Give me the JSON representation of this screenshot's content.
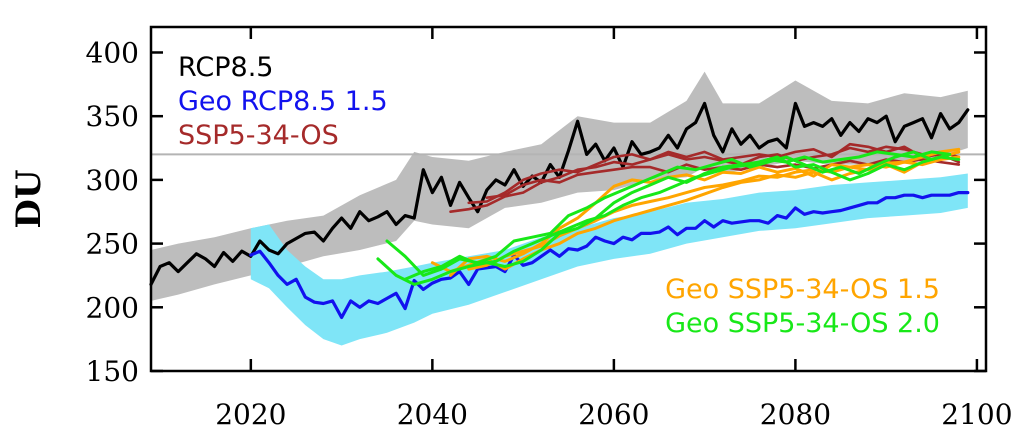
{
  "chart_data": {
    "type": "line",
    "title": "",
    "ylabel": "DU",
    "xlabel": "",
    "xlim": [
      2009,
      2101
    ],
    "ylim": [
      150,
      420
    ],
    "xticks": [
      2020,
      2040,
      2060,
      2080,
      2100
    ],
    "xtick_labels": [
      "2020",
      "2040",
      "2060",
      "2080",
      "2100"
    ],
    "yticks": [
      150,
      200,
      250,
      300,
      350,
      400
    ],
    "ytick_labels": [
      "150",
      "200",
      "250",
      "300",
      "350",
      "400"
    ],
    "reference_line": {
      "y": 320,
      "color": "#b4b4b4"
    },
    "grid": false,
    "colors": {
      "rcp85": "#000000",
      "rcp85_band": "#bdbdbd",
      "geo_rcp85": "#1212ee",
      "geo_rcp85_band": "#7fe5f7",
      "ssp534": "#a52a2a",
      "geo_ssp534_15": "#ffa500",
      "geo_ssp534_20": "#18e818"
    },
    "legend": [
      {
        "label": "RCP8.5",
        "series": "rcp85",
        "color": "#000000",
        "placement": "top-left"
      },
      {
        "label": "Geo RCP8.5 1.5",
        "series": "geo_rcp85",
        "color": "#1212ee",
        "placement": "top-left"
      },
      {
        "label": "SSP5-34-OS",
        "series": "ssp534",
        "color": "#a52a2a",
        "placement": "top-left"
      },
      {
        "label": "Geo SSP5-34-OS 1.5",
        "series": "geo_ssp534_15",
        "color": "#ffa500",
        "placement": "bottom-right"
      },
      {
        "label": "Geo SSP5-34-OS 2.0",
        "series": "geo_ssp534_20",
        "color": "#18e818",
        "placement": "bottom-right"
      }
    ],
    "bands": [
      {
        "series": "rcp85",
        "color": "#bdbdbd",
        "x": [
          2009,
          2012,
          2016,
          2020,
          2024,
          2028,
          2032,
          2036,
          2038,
          2040,
          2044,
          2048,
          2052,
          2056,
          2060,
          2064,
          2068,
          2070,
          2072,
          2076,
          2080,
          2084,
          2088,
          2092,
          2096,
          2099
        ],
        "upper": [
          245,
          250,
          255,
          262,
          268,
          272,
          288,
          300,
          322,
          318,
          315,
          322,
          328,
          350,
          345,
          345,
          362,
          385,
          360,
          360,
          378,
          362,
          360,
          368,
          365,
          370
        ],
        "lower": [
          205,
          210,
          218,
          225,
          232,
          240,
          245,
          252,
          268,
          265,
          262,
          278,
          282,
          290,
          292,
          300,
          302,
          310,
          305,
          310,
          315,
          312,
          312,
          315,
          318,
          325
        ]
      },
      {
        "series": "geo_rcp85",
        "color": "#7fe5f7",
        "x": [
          2020,
          2022,
          2024,
          2026,
          2028,
          2030,
          2032,
          2035,
          2038,
          2040,
          2044,
          2048,
          2052,
          2056,
          2060,
          2064,
          2068,
          2072,
          2076,
          2080,
          2084,
          2088,
          2092,
          2096,
          2099
        ],
        "upper": [
          262,
          265,
          245,
          232,
          222,
          222,
          225,
          228,
          232,
          235,
          240,
          245,
          255,
          262,
          270,
          275,
          282,
          285,
          290,
          292,
          296,
          298,
          300,
          302,
          305
        ],
        "lower": [
          222,
          215,
          200,
          186,
          175,
          170,
          175,
          180,
          188,
          195,
          202,
          212,
          222,
          232,
          238,
          242,
          250,
          255,
          260,
          262,
          266,
          270,
          272,
          274,
          278
        ]
      }
    ],
    "series": [
      {
        "name": "RCP8.5",
        "key": "rcp85",
        "color": "#000000",
        "x": [
          2009,
          2010,
          2011,
          2012,
          2013,
          2014,
          2015,
          2016,
          2017,
          2018,
          2019,
          2020,
          2021,
          2022,
          2023,
          2024,
          2025,
          2026,
          2027,
          2028,
          2029,
          2030,
          2031,
          2032,
          2033,
          2034,
          2035,
          2036,
          2037,
          2038,
          2039,
          2040,
          2041,
          2042,
          2043,
          2044,
          2045,
          2046,
          2047,
          2048,
          2049,
          2050,
          2051,
          2052,
          2053,
          2054,
          2055,
          2056,
          2057,
          2058,
          2059,
          2060,
          2061,
          2062,
          2063,
          2064,
          2065,
          2066,
          2067,
          2068,
          2069,
          2070,
          2071,
          2072,
          2073,
          2074,
          2075,
          2076,
          2077,
          2078,
          2079,
          2080,
          2081,
          2082,
          2083,
          2084,
          2085,
          2086,
          2087,
          2088,
          2089,
          2090,
          2091,
          2092,
          2093,
          2094,
          2095,
          2096,
          2097,
          2098,
          2099
        ],
        "values": [
          218,
          232,
          235,
          228,
          235,
          242,
          238,
          232,
          243,
          236,
          244,
          240,
          252,
          245,
          242,
          250,
          254,
          258,
          259,
          252,
          262,
          270,
          262,
          275,
          268,
          271,
          275,
          265,
          272,
          270,
          308,
          290,
          302,
          280,
          298,
          286,
          275,
          292,
          300,
          296,
          308,
          295,
          303,
          298,
          312,
          302,
          323,
          346,
          320,
          328,
          315,
          325,
          310,
          330,
          320,
          322,
          325,
          335,
          325,
          340,
          345,
          360,
          335,
          322,
          340,
          328,
          335,
          325,
          330,
          332,
          325,
          360,
          342,
          345,
          342,
          348,
          335,
          345,
          338,
          348,
          345,
          350,
          330,
          342,
          345,
          348,
          333,
          352,
          340,
          345,
          355
        ]
      },
      {
        "name": "Geo RCP8.5 1.5",
        "key": "geo_rcp85",
        "color": "#1212ee",
        "x": [
          2020,
          2021,
          2022,
          2023,
          2024,
          2025,
          2026,
          2027,
          2028,
          2029,
          2030,
          2031,
          2032,
          2033,
          2034,
          2035,
          2036,
          2037,
          2038,
          2039,
          2040,
          2041,
          2042,
          2043,
          2044,
          2045,
          2046,
          2047,
          2048,
          2049,
          2050,
          2051,
          2052,
          2053,
          2054,
          2055,
          2056,
          2057,
          2058,
          2059,
          2060,
          2061,
          2062,
          2063,
          2064,
          2065,
          2066,
          2067,
          2068,
          2069,
          2070,
          2071,
          2072,
          2073,
          2074,
          2075,
          2076,
          2077,
          2078,
          2079,
          2080,
          2081,
          2082,
          2083,
          2084,
          2085,
          2086,
          2087,
          2088,
          2089,
          2090,
          2091,
          2092,
          2093,
          2094,
          2095,
          2096,
          2097,
          2098,
          2099
        ],
        "values": [
          241,
          244,
          235,
          225,
          218,
          222,
          208,
          204,
          203,
          205,
          192,
          205,
          200,
          205,
          203,
          207,
          211,
          199,
          221,
          214,
          219,
          222,
          223,
          228,
          218,
          230,
          231,
          232,
          228,
          241,
          233,
          235,
          240,
          245,
          240,
          246,
          245,
          248,
          255,
          252,
          250,
          255,
          253,
          258,
          258,
          259,
          263,
          257,
          262,
          262,
          268,
          263,
          268,
          266,
          267,
          268,
          268,
          266,
          272,
          270,
          278,
          273,
          275,
          274,
          275,
          276,
          278,
          280,
          282,
          282,
          286,
          286,
          288,
          288,
          286,
          288,
          288,
          288,
          290,
          290
        ]
      },
      {
        "name": "SSP5-34-OS",
        "key": "ssp534",
        "color": "#a52a2a",
        "x": [
          2042,
          2044,
          2046,
          2048,
          2050,
          2052,
          2054,
          2056,
          2058,
          2060,
          2062,
          2064,
          2066,
          2068,
          2070,
          2072,
          2074,
          2076,
          2078,
          2080,
          2082,
          2084,
          2086,
          2088,
          2090,
          2092,
          2094,
          2096,
          2098
        ],
        "values": [
          275,
          277,
          280,
          287,
          290,
          298,
          302,
          308,
          310,
          314,
          312,
          316,
          320,
          316,
          318,
          315,
          312,
          318,
          320,
          315,
          318,
          320,
          325,
          322,
          326,
          324,
          320,
          322,
          318
        ]
      },
      {
        "name": "SSP5-34-OS run 2",
        "key": "ssp534",
        "color": "#a52a2a",
        "x": [
          2044,
          2046,
          2048,
          2050,
          2052,
          2054,
          2056,
          2058,
          2060,
          2062,
          2064,
          2066,
          2068,
          2070,
          2072,
          2074,
          2076,
          2078,
          2080,
          2082,
          2084,
          2086,
          2088,
          2090,
          2092,
          2094,
          2096,
          2098
        ],
        "values": [
          282,
          283,
          290,
          300,
          305,
          308,
          306,
          312,
          318,
          320,
          316,
          322,
          318,
          322,
          316,
          318,
          320,
          318,
          322,
          324,
          318,
          328,
          326,
          322,
          326,
          318,
          320,
          314
        ]
      },
      {
        "name": "SSP5-34-OS run 3",
        "key": "ssp534",
        "color": "#a52a2a",
        "x": [
          2046,
          2048,
          2050,
          2052,
          2054,
          2056,
          2058,
          2060,
          2062,
          2064,
          2066,
          2068,
          2070,
          2072,
          2074,
          2076,
          2078,
          2080,
          2082,
          2084,
          2086,
          2088,
          2090,
          2092,
          2094,
          2096,
          2098
        ],
        "values": [
          286,
          288,
          296,
          300,
          298,
          304,
          306,
          308,
          310,
          310,
          306,
          312,
          308,
          310,
          308,
          312,
          310,
          312,
          309,
          312,
          315,
          312,
          316,
          314,
          316,
          314,
          312
        ]
      },
      {
        "name": "Geo SSP5-34-OS 1.5",
        "key": "geo_ssp534_15",
        "color": "#ffa500",
        "x": [
          2040,
          2042,
          2044,
          2046,
          2048,
          2050,
          2052,
          2054,
          2056,
          2058,
          2060,
          2062,
          2064,
          2066,
          2068,
          2070,
          2072,
          2074,
          2076,
          2078,
          2080,
          2082,
          2084,
          2086,
          2088,
          2090,
          2092,
          2094,
          2096,
          2098
        ],
        "values": [
          235,
          228,
          233,
          238,
          230,
          238,
          245,
          250,
          258,
          262,
          268,
          272,
          276,
          280,
          284,
          289,
          294,
          298,
          300,
          304,
          302,
          306,
          300,
          305,
          308,
          312,
          306,
          314,
          318,
          322
        ]
      },
      {
        "name": "Geo SSP5-34-OS 1.5 run 2",
        "key": "geo_ssp534_15",
        "color": "#ffa500",
        "x": [
          2042,
          2044,
          2046,
          2048,
          2050,
          2052,
          2054,
          2056,
          2058,
          2060,
          2062,
          2064,
          2066,
          2068,
          2070,
          2072,
          2074,
          2076,
          2078,
          2080,
          2082,
          2084,
          2086,
          2088,
          2090,
          2092,
          2094,
          2096,
          2098
        ],
        "values": [
          225,
          238,
          240,
          236,
          242,
          250,
          262,
          270,
          282,
          295,
          300,
          298,
          302,
          304,
          300,
          306,
          305,
          310,
          306,
          309,
          303,
          312,
          310,
          308,
          313,
          314,
          318,
          322,
          324
        ]
      },
      {
        "name": "Geo SSP5-34-OS 1.5 run 3",
        "key": "geo_ssp534_15",
        "color": "#ffa500",
        "x": [
          2044,
          2046,
          2048,
          2050,
          2052,
          2054,
          2056,
          2058,
          2060,
          2062,
          2064,
          2066,
          2068,
          2070,
          2072,
          2074,
          2076,
          2078,
          2080,
          2082,
          2084,
          2086,
          2088,
          2090,
          2092,
          2094,
          2096,
          2098
        ],
        "values": [
          230,
          233,
          240,
          244,
          248,
          256,
          262,
          268,
          275,
          280,
          283,
          286,
          290,
          294,
          296,
          299,
          303,
          302,
          306,
          308,
          306,
          310,
          312,
          310,
          314,
          312,
          316,
          318
        ]
      },
      {
        "name": "Geo SSP5-34-OS 2.0",
        "key": "geo_ssp534_20",
        "color": "#18e818",
        "x": [
          2035,
          2037,
          2039,
          2041,
          2043,
          2045,
          2047,
          2049,
          2051,
          2053,
          2055,
          2057,
          2059,
          2061,
          2063,
          2065,
          2067,
          2069,
          2071,
          2073,
          2075,
          2077,
          2079,
          2081,
          2083,
          2085,
          2087,
          2089,
          2091,
          2093,
          2095,
          2097
        ],
        "values": [
          252,
          240,
          225,
          230,
          238,
          235,
          240,
          252,
          255,
          258,
          272,
          278,
          286,
          292,
          298,
          304,
          310,
          308,
          312,
          316,
          310,
          314,
          318,
          312,
          306,
          310,
          305,
          312,
          318,
          322,
          316,
          320
        ]
      },
      {
        "name": "Geo SSP5-34-OS 2.0 run 2",
        "key": "geo_ssp534_20",
        "color": "#18e818",
        "x": [
          2034,
          2036,
          2038,
          2040,
          2042,
          2044,
          2046,
          2048,
          2050,
          2052,
          2054,
          2056,
          2058,
          2060,
          2062,
          2064,
          2066,
          2068,
          2070,
          2072,
          2074,
          2076,
          2078,
          2080,
          2082,
          2084,
          2086,
          2088,
          2090,
          2092,
          2094,
          2096,
          2098
        ],
        "values": [
          238,
          225,
          218,
          222,
          228,
          232,
          235,
          232,
          236,
          245,
          258,
          262,
          270,
          282,
          290,
          296,
          302,
          298,
          305,
          310,
          312,
          314,
          318,
          310,
          312,
          306,
          300,
          305,
          312,
          308,
          314,
          318,
          316
        ]
      },
      {
        "name": "Geo SSP5-34-OS 2.0 run 3",
        "key": "geo_ssp534_20",
        "color": "#18e818",
        "x": [
          2037,
          2039,
          2041,
          2043,
          2045,
          2047,
          2049,
          2051,
          2053,
          2055,
          2057,
          2059,
          2061,
          2063,
          2065,
          2067,
          2069,
          2071,
          2073,
          2075,
          2077,
          2079,
          2081,
          2083,
          2085,
          2087,
          2089,
          2091,
          2093,
          2095,
          2097
        ],
        "values": [
          222,
          228,
          232,
          240,
          234,
          236,
          244,
          250,
          256,
          262,
          268,
          272,
          280,
          286,
          290,
          296,
          302,
          306,
          310,
          312,
          316,
          314,
          318,
          314,
          316,
          318,
          322,
          320,
          318,
          322,
          320
        ]
      }
    ]
  }
}
